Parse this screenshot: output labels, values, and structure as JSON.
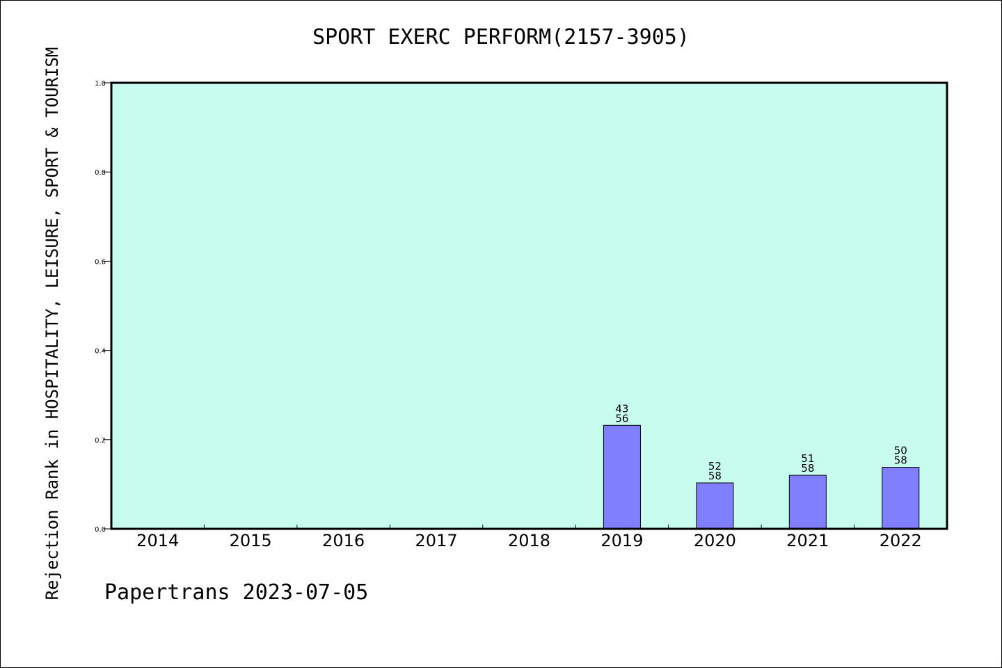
{
  "chart_data": {
    "type": "bar",
    "title": "SPORT EXERC PERFORM(2157-3905)",
    "ylabel": "Rejection Rank in HOSPITALITY, LEISURE, SPORT & TOURISM",
    "xlabel": "",
    "categories": [
      "2014",
      "2015",
      "2016",
      "2017",
      "2018",
      "2019",
      "2020",
      "2021",
      "2022"
    ],
    "values": [
      null,
      null,
      null,
      null,
      null,
      0.232,
      0.103,
      0.12,
      0.138
    ],
    "bar_labels": [
      null,
      null,
      null,
      null,
      null,
      {
        "top": "43",
        "bottom": "56"
      },
      {
        "top": "52",
        "bottom": "58"
      },
      {
        "top": "51",
        "bottom": "58"
      },
      {
        "top": "50",
        "bottom": "58"
      }
    ],
    "ylim": [
      0,
      1.0
    ],
    "yticks": [
      "0.0",
      "0.2",
      "0.4",
      "0.6",
      "0.8",
      "1.0"
    ],
    "grid": false,
    "colors": {
      "plot_background": "#c8fcee",
      "bar_fill": "#8080ff",
      "bar_stroke": "#000000"
    }
  },
  "footer": {
    "text": "Papertrans 2023-07-05"
  }
}
